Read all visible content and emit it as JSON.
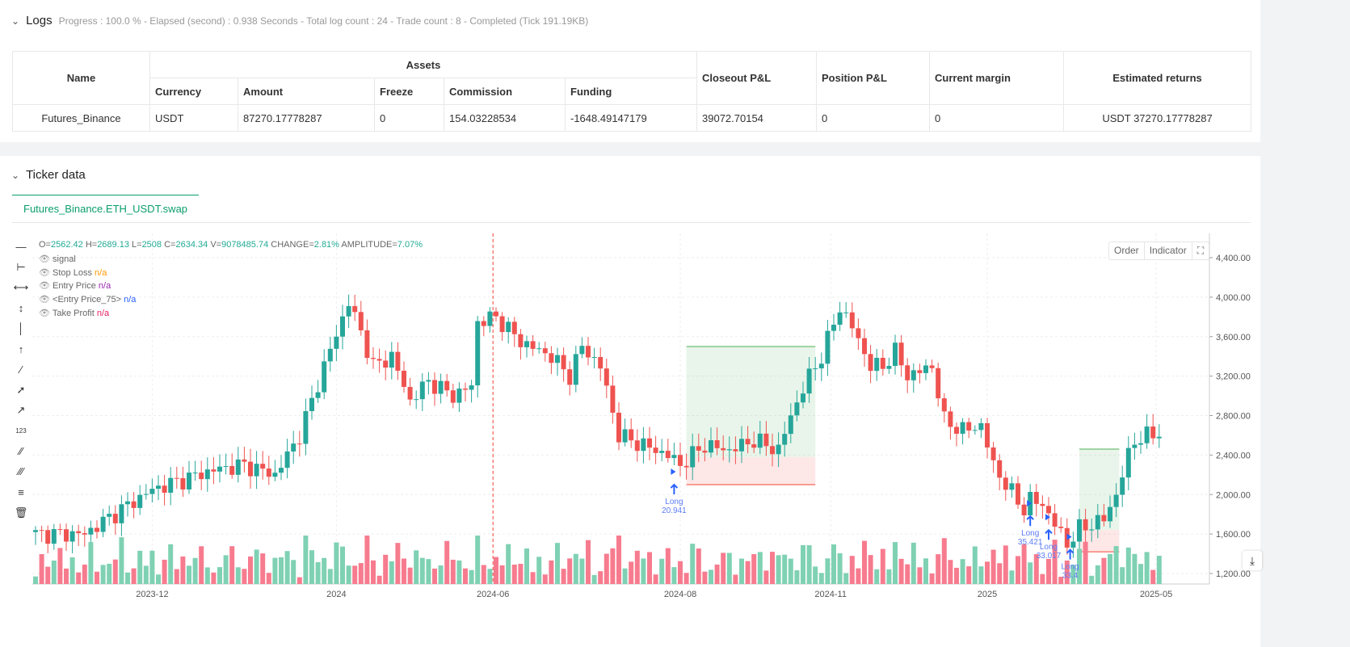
{
  "logs": {
    "title": "Logs",
    "status": "Progress : 100.0 % - Elapsed (second) : 0.938  Seconds - Total log count : 24 - Trade count : 8 - Completed (Tick 191.19KB)",
    "table": {
      "name_header": "Name",
      "assets_header": "Assets",
      "sub_headers": [
        "Currency",
        "Amount",
        "Freeze",
        "Commission",
        "Funding"
      ],
      "closeout": "Closeout P&L",
      "position": "Position P&L",
      "margin": "Current margin",
      "returns": "Estimated returns",
      "row": {
        "name": "Futures_Binance",
        "currency": "USDT",
        "amount": "87270.17778287",
        "freeze": "0",
        "commission": "154.03228534",
        "funding": "-1648.49147179",
        "closeout": "39072.70154",
        "position": "0",
        "margin": "0",
        "returns": "USDT 37270.17778287"
      }
    }
  },
  "ticker": {
    "title": "Ticker data",
    "tab": "Futures_Binance.ETH_USDT.swap",
    "order_btn": "Order",
    "indicator_btn": "Indicator",
    "ohlc": {
      "o_label": "O=",
      "o": "2562.42",
      "h_label": "H=",
      "h": "2689.13",
      "l_label": "L=",
      "l": "2508",
      "c_label": "C=",
      "c": "2634.34",
      "v_label": "V=",
      "v": "9078485.74",
      "chg_label": "CHANGE=",
      "chg": "2.81%",
      "amp_label": "AMPLITUDE=",
      "amp": "7.07%"
    },
    "legend": [
      {
        "label": "signal",
        "value": "",
        "color": "#999"
      },
      {
        "label": "Stop Loss",
        "value": "n/a",
        "color": "#ff9800"
      },
      {
        "label": "Entry Price",
        "value": "n/a",
        "color": "#9c27b0"
      },
      {
        "label": "<Entry Price_75>",
        "value": "n/a",
        "color": "#2962ff"
      },
      {
        "label": "Take Profit",
        "value": "n/a",
        "color": "#e91e63"
      }
    ]
  },
  "colors": {
    "up": "#26a69a",
    "down": "#ef5350",
    "up_vol": "#7fd1b4",
    "down_vol": "#f77b8e",
    "signal": "#2962ff"
  },
  "chart_data": {
    "type": "candlestick",
    "candle_count": 184,
    "key_closes": [
      [
        0,
        1600
      ],
      [
        8,
        1600
      ],
      [
        14,
        1850
      ],
      [
        19,
        2050
      ],
      [
        29,
        2250
      ],
      [
        34,
        2300
      ],
      [
        39,
        2200
      ],
      [
        43,
        2600
      ],
      [
        47,
        3300
      ],
      [
        51,
        3950
      ],
      [
        53,
        3650
      ],
      [
        55,
        3300
      ],
      [
        58,
        3400
      ],
      [
        61,
        2950
      ],
      [
        64,
        3150
      ],
      [
        68,
        3000
      ],
      [
        71,
        3100
      ],
      [
        72,
        3750
      ],
      [
        75,
        3800
      ],
      [
        79,
        3550
      ],
      [
        84,
        3400
      ],
      [
        87,
        3200
      ],
      [
        89,
        3500
      ],
      [
        92,
        3300
      ],
      [
        95,
        2600
      ],
      [
        99,
        2500
      ],
      [
        103,
        2400
      ],
      [
        105,
        2300
      ],
      [
        109,
        2500
      ],
      [
        113,
        2450
      ],
      [
        117,
        2550
      ],
      [
        121,
        2450
      ],
      [
        123,
        2800
      ],
      [
        126,
        3200
      ],
      [
        128,
        3400
      ],
      [
        131,
        3900
      ],
      [
        133,
        3700
      ],
      [
        136,
        3300
      ],
      [
        138,
        3300
      ],
      [
        140,
        3450
      ],
      [
        142,
        3200
      ],
      [
        146,
        3300
      ],
      [
        148,
        2750
      ],
      [
        151,
        2650
      ],
      [
        154,
        2700
      ],
      [
        156,
        2300
      ],
      [
        158,
        2100
      ],
      [
        161,
        1850
      ],
      [
        162,
        1950
      ],
      [
        164,
        1900
      ],
      [
        166,
        1700
      ],
      [
        168,
        1500
      ],
      [
        170,
        1650
      ],
      [
        174,
        1750
      ],
      [
        176,
        2000
      ],
      [
        178,
        2400
      ],
      [
        179,
        2550
      ],
      [
        183,
        2630
      ]
    ],
    "ylim": [
      1200,
      4400
    ],
    "yticks": [
      "4,400.00",
      "4,000.00",
      "3,600.00",
      "3,200.00",
      "2,800.00",
      "2,400.00",
      "2,000.00",
      "1,600.00",
      "1,200.00"
    ],
    "ytick_values": [
      4400,
      4000,
      3600,
      3200,
      2800,
      2400,
      2000,
      1600,
      1200
    ],
    "xticks": [
      {
        "label": "2023-12",
        "index": 19
      },
      {
        "label": "2024",
        "index": 49
      },
      {
        "label": "2024-06",
        "index": 74.5
      },
      {
        "label": "2024-08",
        "index": 105
      },
      {
        "label": "2024-11",
        "index": 129.5
      },
      {
        "label": "2025",
        "index": 155
      },
      {
        "label": "2025-05",
        "index": 182.5
      }
    ],
    "marker_line_index": 74.5,
    "trades": [
      {
        "from": 106,
        "to": 127,
        "tp": 3500,
        "entry": 2380,
        "sl": 2100
      },
      {
        "from": 170,
        "to": 176.5,
        "tp": 2460,
        "entry": 1640,
        "sl": 1420
      }
    ],
    "signals": [
      {
        "index": 104,
        "price": 2100,
        "label": "Long",
        "value": "20.941"
      },
      {
        "index": 162,
        "price": 1780,
        "label": "Long",
        "value": "35.421"
      },
      {
        "index": 165,
        "price": 1640,
        "label": "Long",
        "value": "33.017"
      },
      {
        "index": 168.5,
        "price": 1440,
        "label": "Long",
        "value": "33.4"
      }
    ]
  }
}
